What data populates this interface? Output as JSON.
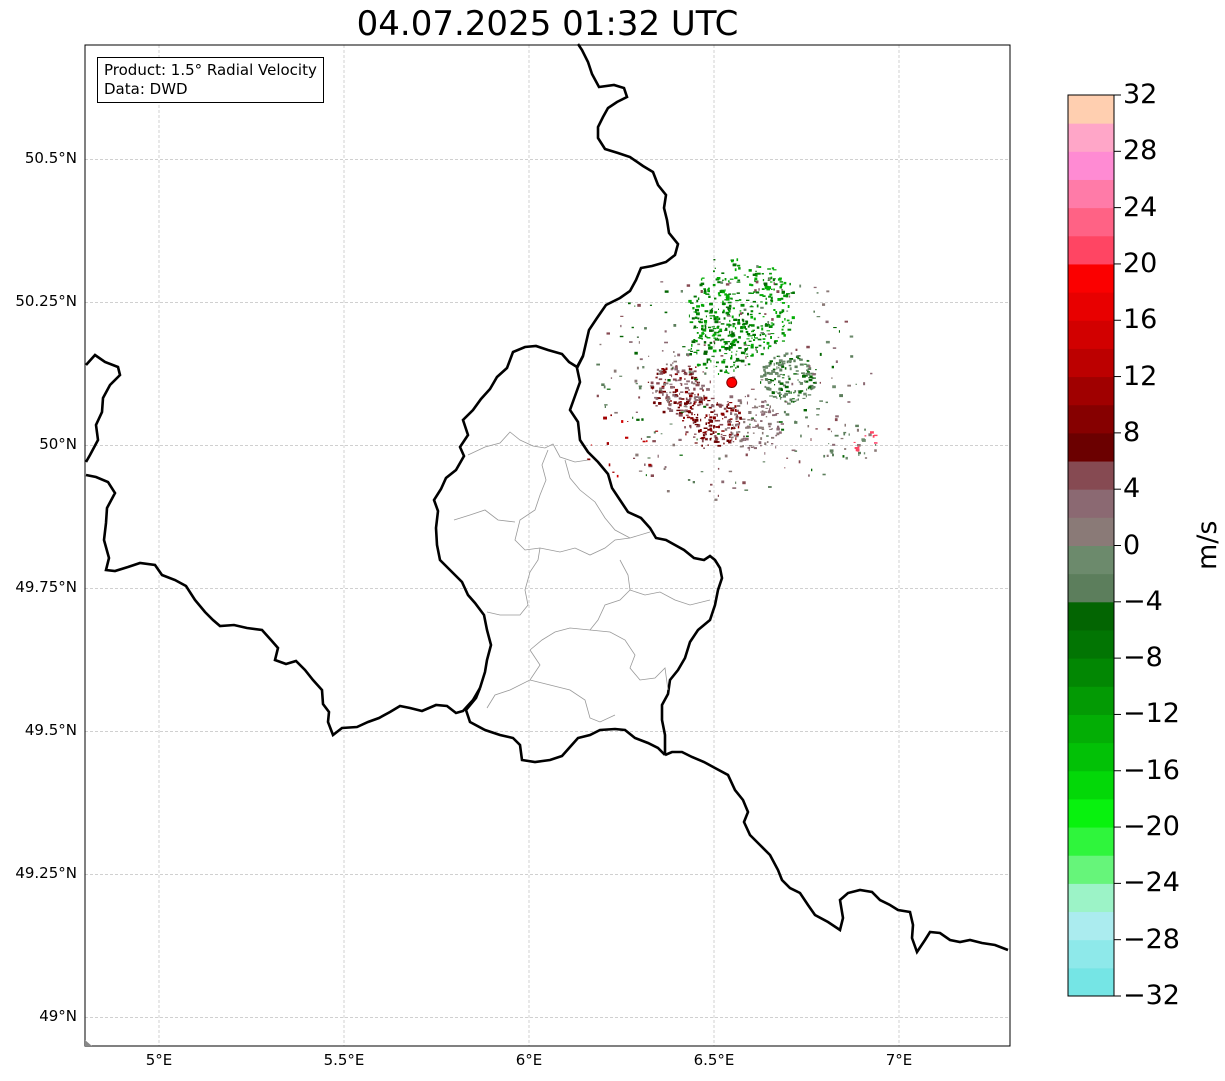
{
  "title": "04.07.2025 01:32 UTC",
  "info_box": {
    "product": "Product: 1.5° Radial Velocity",
    "data_source": "Data: DWD"
  },
  "map": {
    "extent": {
      "lon": [
        4.8,
        7.3
      ],
      "lat": [
        48.95,
        50.7
      ]
    },
    "lat_ticks": [
      {
        "value": 50.5,
        "label": "50.5°N"
      },
      {
        "value": 50.25,
        "label": "50.25°N"
      },
      {
        "value": 50.0,
        "label": "50°N"
      },
      {
        "value": 49.75,
        "label": "49.75°N"
      },
      {
        "value": 49.5,
        "label": "49.5°N"
      },
      {
        "value": 49.25,
        "label": "49.25°N"
      },
      {
        "value": 49.0,
        "label": "49°N"
      }
    ],
    "lon_ticks": [
      {
        "value": 5.0,
        "label": "5°E"
      },
      {
        "value": 5.5,
        "label": "5.5°E"
      },
      {
        "value": 6.0,
        "label": "6°E"
      },
      {
        "value": 6.5,
        "label": "6.5°E"
      },
      {
        "value": 7.0,
        "label": "7°E"
      }
    ],
    "gridlines": true,
    "radar_site": {
      "lon": 6.548,
      "lat": 50.11,
      "color": "#ff0000"
    }
  },
  "colorbar": {
    "label": "m/s",
    "min": -32,
    "max": 32,
    "tick_values": [
      32,
      28,
      24,
      20,
      16,
      12,
      8,
      4,
      0,
      -4,
      -8,
      -12,
      -16,
      -20,
      -24,
      -28,
      -32
    ],
    "tick_labels": [
      "32",
      "28",
      "24",
      "20",
      "16",
      "12",
      "8",
      "4",
      "0",
      "−4",
      "−8",
      "−12",
      "−16",
      "−20",
      "−24",
      "−28",
      "−32"
    ],
    "colors_bottom_to_top": [
      "#75e5e5",
      "#8ee9ea",
      "#abecef",
      "#9cf3c7",
      "#66f57a",
      "#2ff53c",
      "#08f20e",
      "#03d808",
      "#02c106",
      "#03ae05",
      "#039a04",
      "#028703",
      "#027503",
      "#036502",
      "#5c7e5c",
      "#6c8a6c",
      "#8a7a77",
      "#8b6972",
      "#864a52",
      "#6b0000",
      "#860000",
      "#a00000",
      "#bc0000",
      "#d20000",
      "#e80000",
      "#fb0000",
      "#ff4563",
      "#ff6285",
      "#ff7ba8",
      "#ff8bd3",
      "#ffa6c8",
      "#ffcfb0"
    ]
  }
}
